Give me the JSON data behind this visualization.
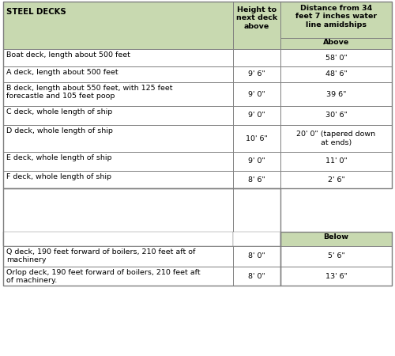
{
  "header_bg": "#c8d9b0",
  "header_text_color": "#000000",
  "body_bg": "#ffffff",
  "border_color": "#7f7f7f",
  "col1_header": "STEEL DECKS",
  "col2_header": "Height to\nnext deck\nabove",
  "col3_header": "Distance from 34\nfeet 7 inches water\nline amidships",
  "col3_subheader_above": "Above",
  "col3_subheader_below": "Below",
  "rows_above": [
    {
      "deck": "Boat deck, length about 500 feet",
      "height": "",
      "distance": "58' 0\""
    },
    {
      "deck": "A deck, length about 500 feet",
      "height": "9' 6\"",
      "distance": "48' 6\""
    },
    {
      "deck": "B deck, length about 550 feet, with 125 feet\nforecastle and 105 feet poop",
      "height": "9' 0\"",
      "distance": "39 6\""
    },
    {
      "deck": "C deck, whole length of ship",
      "height": "9' 0\"",
      "distance": "30' 6\""
    },
    {
      "deck": "D deck, whole length of ship",
      "height": "10' 6\"",
      "distance": "20' 0\" (tapered down\nat ends)"
    },
    {
      "deck": "E deck, whole length of ship",
      "height": "9' 0\"",
      "distance": "11' 0\""
    },
    {
      "deck": "F deck, whole length of ship",
      "height": "8' 6\"",
      "distance": "2' 6\""
    }
  ],
  "rows_below": [
    {
      "deck": "Q deck, 190 feet forward of boilers, 210 feet aft of\nmachinery",
      "height": "8' 0\"",
      "distance": "5' 6\""
    },
    {
      "deck": "Orlop deck, 190 feet forward of boilers, 210 feet aft\nof machinery.",
      "height": "8' 0\"",
      "distance": "13' 6\""
    }
  ],
  "font_size": 6.8,
  "font_family": "DejaVu Sans",
  "fig_width": 5.0,
  "fig_height": 4.5,
  "dpi": 100
}
